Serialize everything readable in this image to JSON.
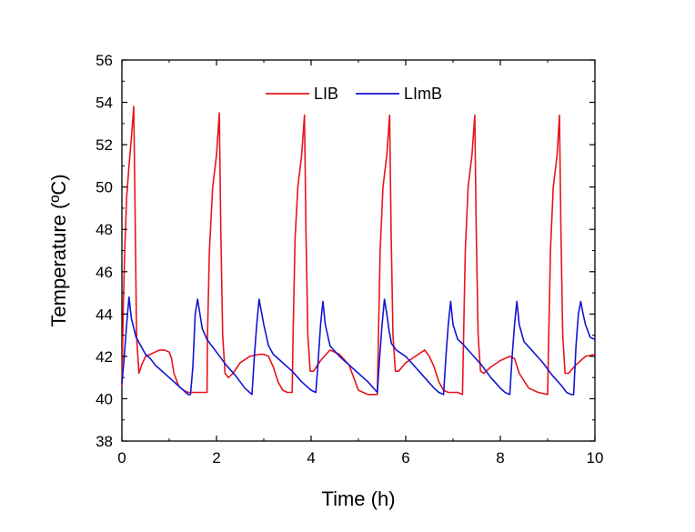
{
  "chart_data": {
    "type": "line",
    "title": "",
    "xlabel": "Time (h)",
    "ylabel": "Temperature (ºC)",
    "xlim": [
      0,
      10
    ],
    "ylim": [
      38,
      56
    ],
    "xticks": [
      0,
      2,
      4,
      6,
      8,
      10
    ],
    "yticks": [
      38,
      40,
      42,
      44,
      46,
      48,
      50,
      52,
      54,
      56
    ],
    "grid": false,
    "legend": "top-center",
    "series": [
      {
        "name": "LIB",
        "color": "#e8151b",
        "x": [
          0.0,
          0.03,
          0.06,
          0.1,
          0.15,
          0.2,
          0.25,
          0.28,
          0.31,
          0.36,
          0.42,
          0.5,
          0.6,
          0.7,
          0.8,
          0.9,
          1.0,
          1.05,
          1.1,
          1.2,
          1.3,
          1.4,
          1.5,
          1.6,
          1.7,
          1.8,
          1.81,
          1.85,
          1.92,
          2.0,
          2.06,
          2.09,
          2.13,
          2.18,
          2.25,
          2.35,
          2.5,
          2.7,
          2.9,
          3.0,
          3.1,
          3.2,
          3.3,
          3.4,
          3.5,
          3.6,
          3.62,
          3.66,
          3.72,
          3.8,
          3.86,
          3.89,
          3.93,
          3.98,
          4.05,
          4.2,
          4.4,
          4.6,
          4.8,
          4.9,
          5.0,
          5.1,
          5.2,
          5.3,
          5.4,
          5.42,
          5.46,
          5.52,
          5.6,
          5.66,
          5.69,
          5.73,
          5.78,
          5.85,
          6.0,
          6.2,
          6.4,
          6.5,
          6.6,
          6.7,
          6.8,
          6.9,
          7.0,
          7.1,
          7.2,
          7.22,
          7.26,
          7.32,
          7.4,
          7.46,
          7.49,
          7.53,
          7.58,
          7.65,
          7.8,
          8.0,
          8.2,
          8.3,
          8.4,
          8.6,
          8.8,
          9.0,
          9.02,
          9.06,
          9.12,
          9.2,
          9.25,
          9.28,
          9.32,
          9.37,
          9.44,
          9.6,
          9.8,
          10.0
        ],
        "values": [
          40.6,
          44.5,
          47.0,
          49.5,
          51.0,
          52.3,
          53.8,
          48.5,
          43.0,
          41.2,
          41.6,
          42.0,
          42.1,
          42.2,
          42.3,
          42.3,
          42.2,
          41.9,
          41.2,
          40.6,
          40.4,
          40.3,
          40.3,
          40.3,
          40.3,
          40.3,
          43.0,
          47.0,
          50.0,
          51.5,
          53.5,
          48.0,
          43.0,
          41.2,
          41.0,
          41.2,
          41.7,
          42.0,
          42.1,
          42.1,
          42.0,
          41.5,
          40.8,
          40.4,
          40.3,
          40.3,
          43.0,
          47.5,
          50.0,
          51.5,
          53.4,
          48.0,
          43.0,
          41.3,
          41.3,
          41.8,
          42.3,
          42.1,
          41.6,
          41.0,
          40.4,
          40.3,
          40.2,
          40.2,
          40.2,
          42.5,
          47.0,
          50.0,
          51.5,
          53.4,
          48.0,
          43.0,
          41.3,
          41.3,
          41.7,
          42.0,
          42.3,
          42.0,
          41.5,
          40.8,
          40.4,
          40.3,
          40.3,
          40.3,
          40.2,
          42.5,
          47.0,
          50.0,
          51.5,
          53.4,
          48.0,
          43.0,
          41.3,
          41.2,
          41.5,
          41.8,
          42.0,
          41.9,
          41.2,
          40.5,
          40.3,
          40.2,
          42.5,
          47.0,
          50.0,
          51.5,
          53.4,
          48.0,
          43.0,
          41.2,
          41.2,
          41.6,
          42.0,
          42.1
        ]
      },
      {
        "name": "LImB",
        "color": "#1414d2",
        "x": [
          0.0,
          0.05,
          0.1,
          0.15,
          0.2,
          0.3,
          0.4,
          0.5,
          0.6,
          0.7,
          0.8,
          0.9,
          1.0,
          1.1,
          1.2,
          1.3,
          1.4,
          1.45,
          1.5,
          1.55,
          1.6,
          1.7,
          1.8,
          1.9,
          2.0,
          2.2,
          2.4,
          2.6,
          2.7,
          2.75,
          2.8,
          2.85,
          2.9,
          3.0,
          3.1,
          3.2,
          3.4,
          3.6,
          3.8,
          4.0,
          4.1,
          4.15,
          4.2,
          4.25,
          4.3,
          4.4,
          4.6,
          4.8,
          5.0,
          5.2,
          5.4,
          5.45,
          5.5,
          5.55,
          5.6,
          5.65,
          5.7,
          5.8,
          6.0,
          6.2,
          6.4,
          6.6,
          6.7,
          6.8,
          6.85,
          6.9,
          6.95,
          7.0,
          7.1,
          7.2,
          7.4,
          7.6,
          7.8,
          8.0,
          8.1,
          8.2,
          8.25,
          8.3,
          8.35,
          8.4,
          8.5,
          8.7,
          8.9,
          9.1,
          9.3,
          9.4,
          9.5,
          9.55,
          9.6,
          9.65,
          9.7,
          9.75,
          9.8,
          9.9,
          10.0
        ],
        "values": [
          40.7,
          42.0,
          43.5,
          44.8,
          43.8,
          42.9,
          42.5,
          42.1,
          41.9,
          41.6,
          41.4,
          41.2,
          41.0,
          40.8,
          40.6,
          40.4,
          40.2,
          40.2,
          41.5,
          44.0,
          44.7,
          43.3,
          42.8,
          42.5,
          42.2,
          41.6,
          41.1,
          40.5,
          40.3,
          40.2,
          42.0,
          43.5,
          44.7,
          43.5,
          42.5,
          42.1,
          41.7,
          41.3,
          40.8,
          40.4,
          40.3,
          41.8,
          43.5,
          44.6,
          43.5,
          42.5,
          42.0,
          41.6,
          41.2,
          40.8,
          40.3,
          42.0,
          43.5,
          44.7,
          44.0,
          43.2,
          42.6,
          42.3,
          42.0,
          41.5,
          41.0,
          40.5,
          40.3,
          40.2,
          42.0,
          43.5,
          44.6,
          43.5,
          42.8,
          42.6,
          42.1,
          41.6,
          41.0,
          40.5,
          40.3,
          40.2,
          42.0,
          43.5,
          44.6,
          43.5,
          42.7,
          42.2,
          41.7,
          41.1,
          40.6,
          40.3,
          40.2,
          40.2,
          42.5,
          44.0,
          44.6,
          44.0,
          43.5,
          42.9,
          42.8
        ]
      }
    ]
  }
}
